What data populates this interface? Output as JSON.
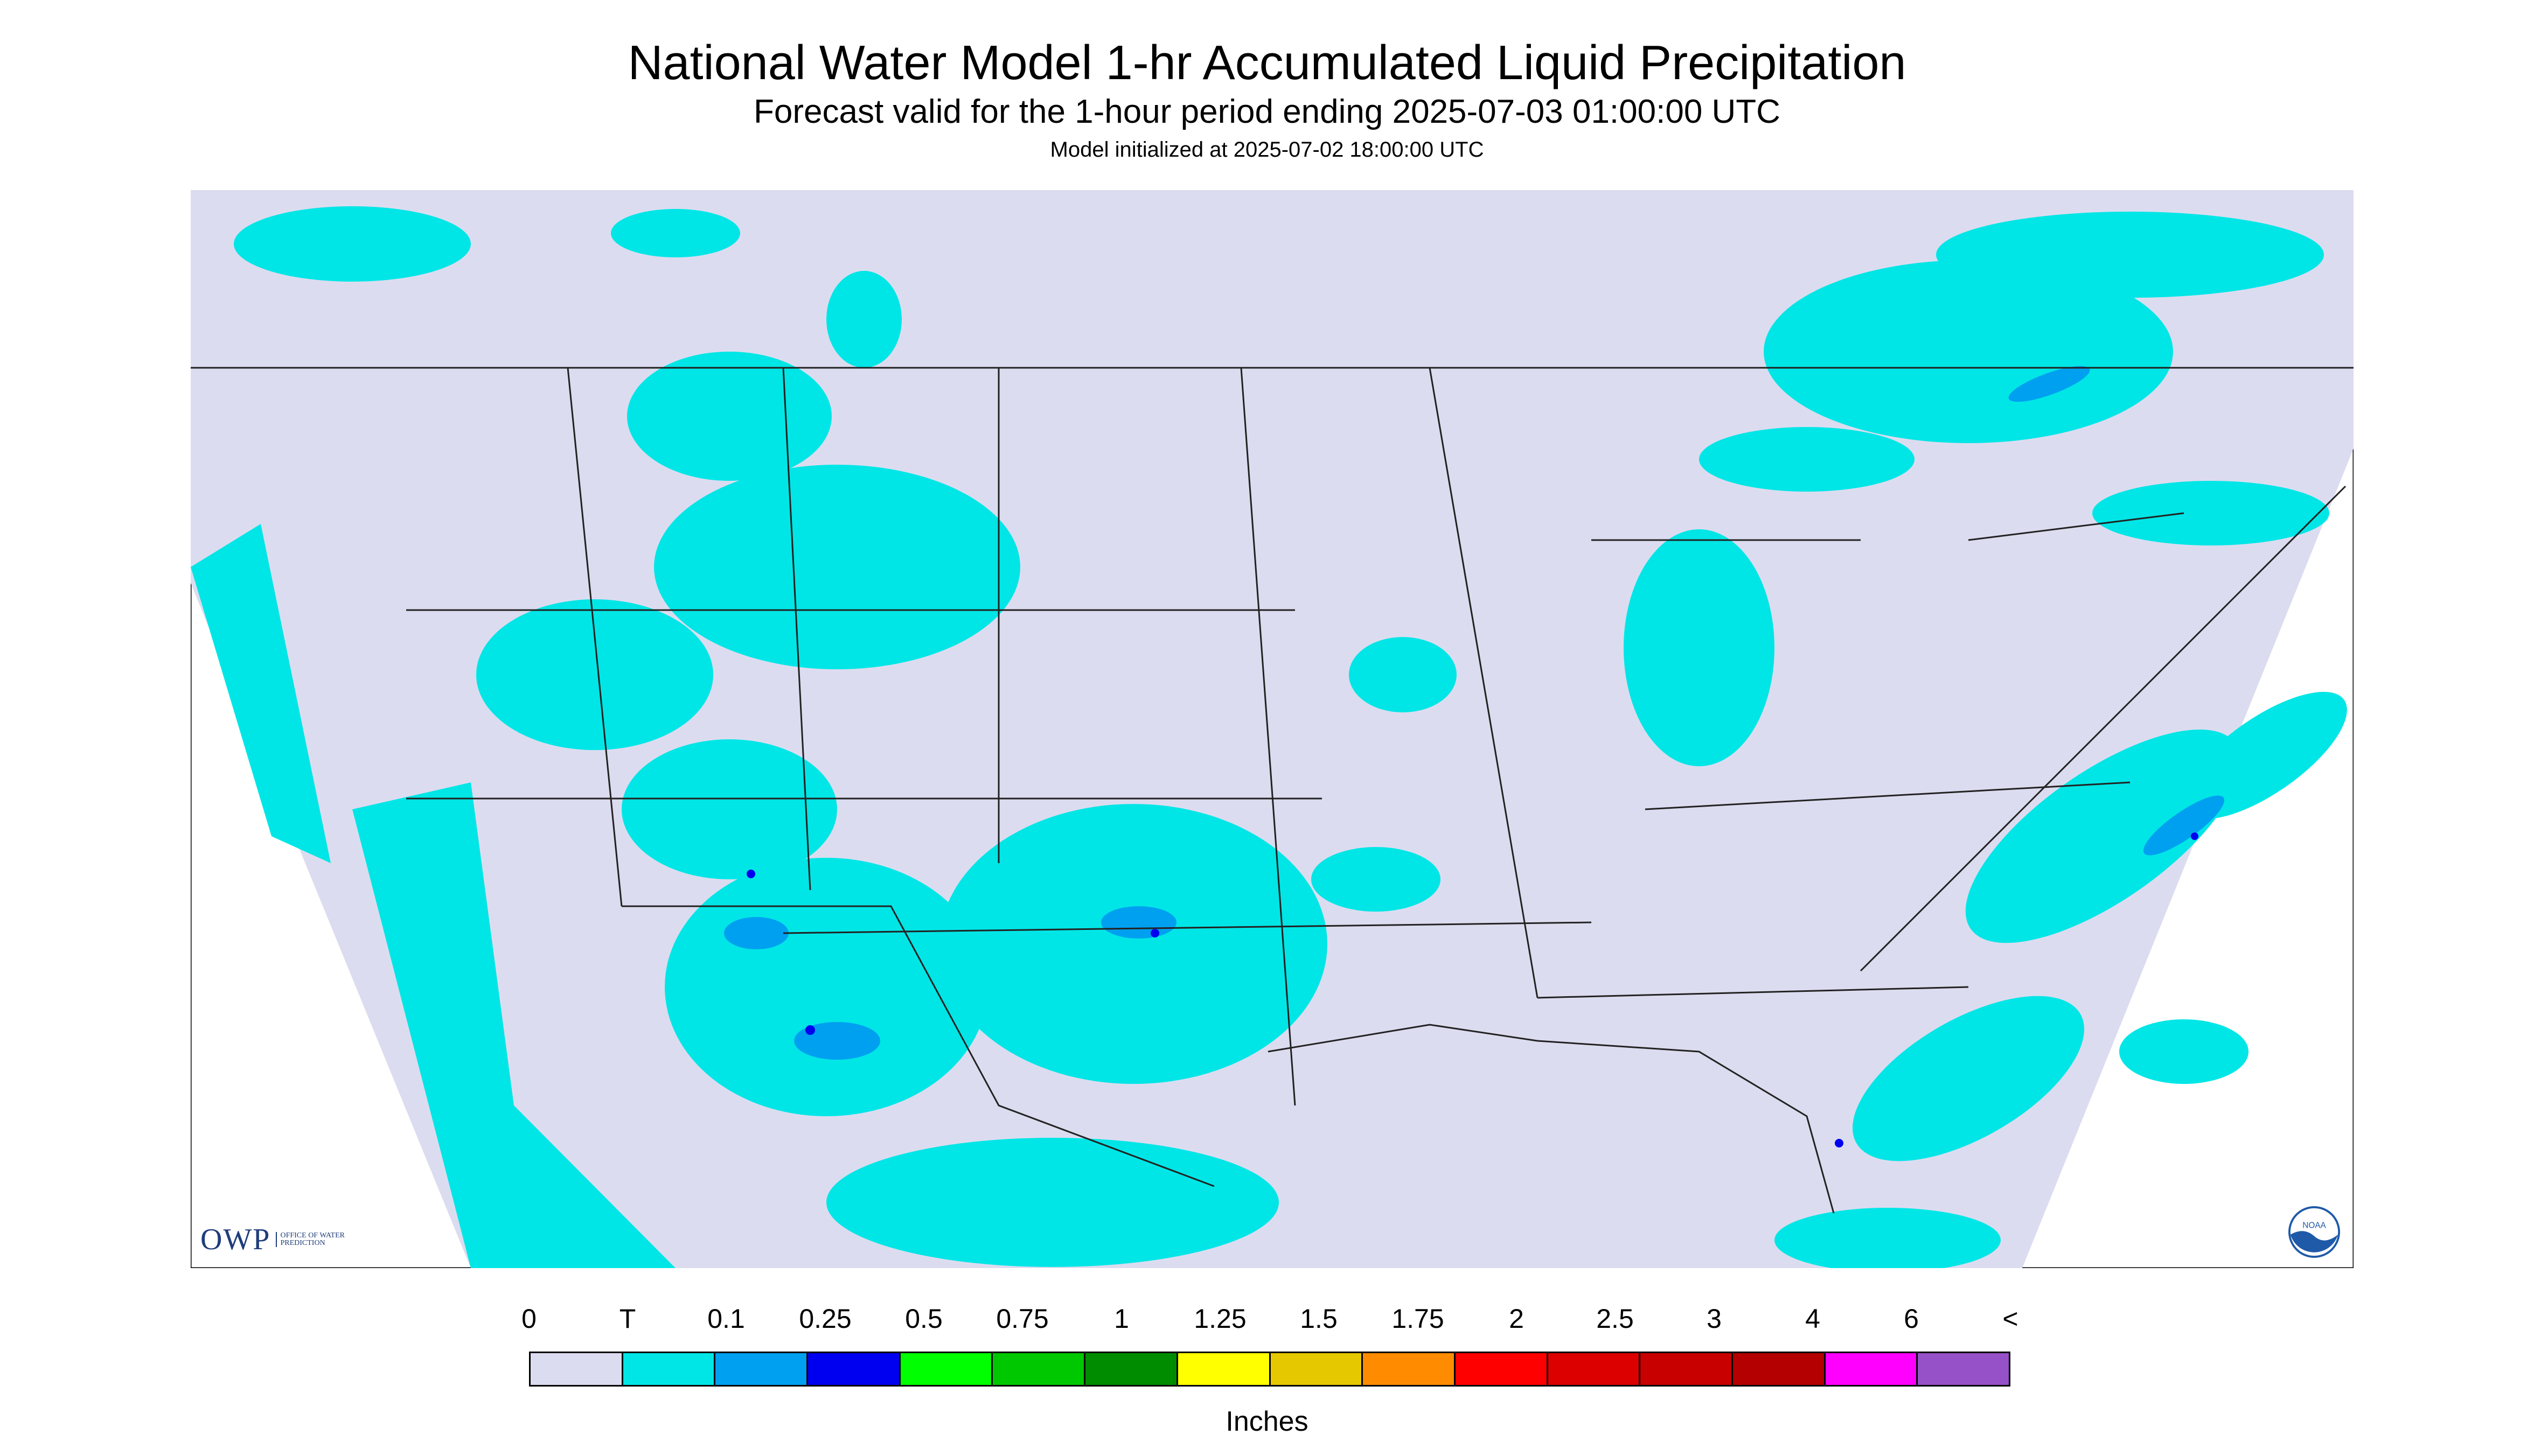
{
  "header": {
    "title": "National Water Model 1-hr Accumulated Liquid Precipitation",
    "subtitle": "Forecast valid for the 1-hour period ending 2025-07-03 01:00:00 UTC",
    "init": "Model initialized at 2025-07-02 18:00:00 UTC"
  },
  "legend": {
    "labels": [
      "0",
      "T",
      "0.1",
      "0.25",
      "0.5",
      "0.75",
      "1",
      "1.25",
      "1.5",
      "1.75",
      "2",
      "2.5",
      "3",
      "4",
      "6",
      "<"
    ],
    "colors": [
      "#dcdcf0",
      "#00e6e6",
      "#00a0f0",
      "#0000f0",
      "#00ff00",
      "#00c800",
      "#008c00",
      "#ffff00",
      "#e6c800",
      "#ff8c00",
      "#ff0000",
      "#dc0000",
      "#c80000",
      "#b40000",
      "#ff00ff",
      "#9650c8"
    ],
    "units": "Inches"
  },
  "logos": {
    "owp_main": "OWP",
    "owp_sub": "OFFICE OF WATER PREDICTION",
    "noaa": "NOAA"
  },
  "map": {
    "background": "#dcdcf0",
    "trace_color": "#00e6e6",
    "light_color": "#00a0f0",
    "moderate_color": "#0000f0",
    "outline_color": "#222222"
  }
}
